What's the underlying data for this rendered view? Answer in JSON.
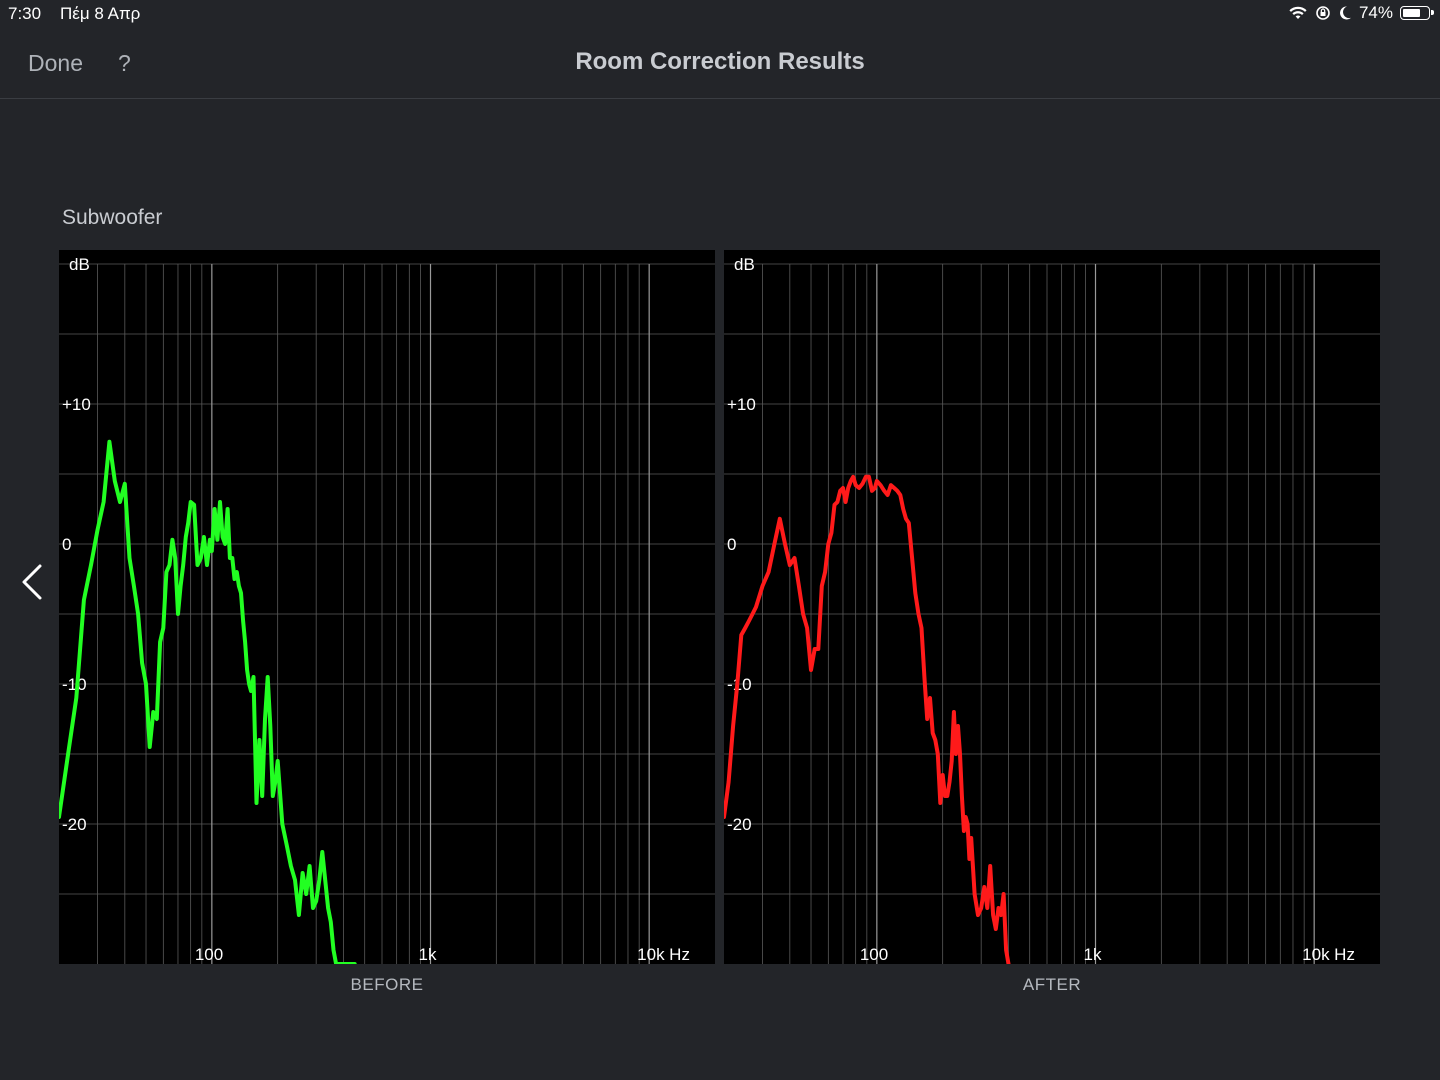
{
  "status_bar": {
    "time": "7:30",
    "date": "Πέμ 8 Απρ",
    "battery": "74%",
    "battery_level": 0.74,
    "icons": [
      "wifi-icon",
      "rotation-lock-icon",
      "moon-icon",
      "battery-icon"
    ]
  },
  "nav": {
    "done": "Done",
    "help": "?",
    "title": "Room Correction Results"
  },
  "section_title": "Subwoofer",
  "colors": {
    "before_line": "#22ff22",
    "after_line": "#ff1a1a",
    "grid": "#5a5a5a",
    "panel_bg": "#000000"
  },
  "chart_data": [
    {
      "type": "line",
      "caption": "BEFORE",
      "xscale": "log",
      "xlim": [
        20,
        20000
      ],
      "ylim": [
        -30,
        20
      ],
      "ylabel": "dB",
      "xlabel": "Hz",
      "yticks": [
        "+10",
        "0",
        "-10",
        "-20"
      ],
      "xticks": [
        "100",
        "1k",
        "10k"
      ],
      "grid": true,
      "series": [
        {
          "color": "#22ff22",
          "x": [
            20,
            22,
            24,
            26,
            28,
            30,
            32,
            34,
            36,
            38,
            40,
            42,
            44,
            46,
            48,
            50,
            52,
            54,
            56,
            58,
            60,
            62,
            64,
            66,
            68,
            70,
            72,
            74,
            76,
            78,
            80,
            83,
            86,
            89,
            92,
            95,
            98,
            100,
            103,
            106,
            109,
            112,
            115,
            118,
            121,
            124,
            127,
            130,
            133,
            136,
            139,
            142,
            145,
            148,
            151,
            155,
            160,
            165,
            170,
            175,
            180,
            185,
            190,
            195,
            200,
            210,
            220,
            230,
            240,
            250,
            260,
            270,
            280,
            290,
            300,
            310,
            320,
            330,
            340,
            350,
            360,
            370,
            380,
            390,
            400,
            410,
            420,
            430,
            440,
            450
          ],
          "y": [
            -19.5,
            -15,
            -11,
            -4,
            -1.5,
            1,
            3,
            7.3,
            4.5,
            3,
            4.3,
            -1,
            -3,
            -5,
            -8.5,
            -10,
            -14.5,
            -12,
            -12.5,
            -7,
            -6,
            -2,
            -1.5,
            0.3,
            -1,
            -5,
            -3,
            -1.5,
            0.5,
            1.5,
            3,
            2.8,
            -1.5,
            -1,
            0.5,
            -1.5,
            0.3,
            -0.5,
            2.5,
            0.3,
            3,
            0.5,
            0,
            2.5,
            -1,
            -1,
            -2.5,
            -2,
            -3,
            -3.5,
            -5.5,
            -7,
            -9,
            -10,
            -10.5,
            -9.5,
            -18.5,
            -14,
            -18,
            -12.5,
            -9.5,
            -13,
            -18,
            -17,
            -15.5,
            -20,
            -21.5,
            -23,
            -24,
            -26.5,
            -23.5,
            -25,
            -23,
            -26,
            -25.5,
            -24,
            -22,
            -24,
            -26,
            -27,
            -29,
            -30,
            -30,
            -30,
            -30,
            -30,
            -30,
            -30,
            -30,
            -30
          ]
        }
      ]
    },
    {
      "type": "line",
      "caption": "AFTER",
      "xscale": "log",
      "xlim": [
        20,
        20000
      ],
      "ylim": [
        -30,
        20
      ],
      "ylabel": "dB",
      "xlabel": "Hz",
      "yticks": [
        "+10",
        "0",
        "-10",
        "-20"
      ],
      "xticks": [
        "100",
        "1k",
        "10k"
      ],
      "grid": true,
      "series": [
        {
          "color": "#ff1a1a",
          "x": [
            20,
            21,
            22,
            23,
            24,
            25,
            26,
            27,
            28,
            30,
            32,
            34,
            36,
            38,
            40,
            42,
            44,
            46,
            48,
            50,
            52,
            54,
            56,
            58,
            60,
            62,
            64,
            66,
            68,
            70,
            72,
            74,
            76,
            78,
            80,
            83,
            86,
            89,
            92,
            95,
            98,
            100,
            104,
            108,
            112,
            116,
            120,
            124,
            128,
            132,
            136,
            140,
            145,
            150,
            155,
            160,
            165,
            170,
            175,
            180,
            185,
            190,
            195,
            200,
            205,
            210,
            215,
            220,
            225,
            230,
            235,
            240,
            245,
            250,
            255,
            260,
            265,
            270,
            280,
            290,
            300,
            310,
            320,
            330,
            340,
            350,
            360,
            370,
            380,
            390,
            400
          ],
          "y": [
            -19.5,
            -17,
            -13,
            -10,
            -6.5,
            -6,
            -5.5,
            -5,
            -4.5,
            -3,
            -2,
            0,
            1.8,
            0,
            -1.5,
            -1,
            -3,
            -5,
            -6,
            -9,
            -7.5,
            -7.5,
            -3,
            -2,
            0,
            0.8,
            2.8,
            3,
            3.8,
            4,
            3,
            4,
            4.5,
            4.8,
            4.2,
            4,
            4.3,
            4.8,
            4.8,
            3.8,
            4,
            4.5,
            4.2,
            3.8,
            3.5,
            4.2,
            4,
            3.8,
            3.5,
            2.5,
            1.8,
            1.5,
            -1,
            -3.5,
            -5,
            -6,
            -9.5,
            -12.5,
            -11,
            -13.5,
            -14,
            -15,
            -18.5,
            -16.5,
            -18,
            -18,
            -17,
            -15.5,
            -12,
            -15,
            -13,
            -15,
            -18,
            -20.5,
            -19.5,
            -20,
            -22.5,
            -21,
            -25,
            -26.5,
            -26,
            -24.5,
            -26,
            -23,
            -26.5,
            -27.5,
            -26,
            -26.5,
            -25,
            -29,
            -30
          ]
        }
      ]
    }
  ]
}
